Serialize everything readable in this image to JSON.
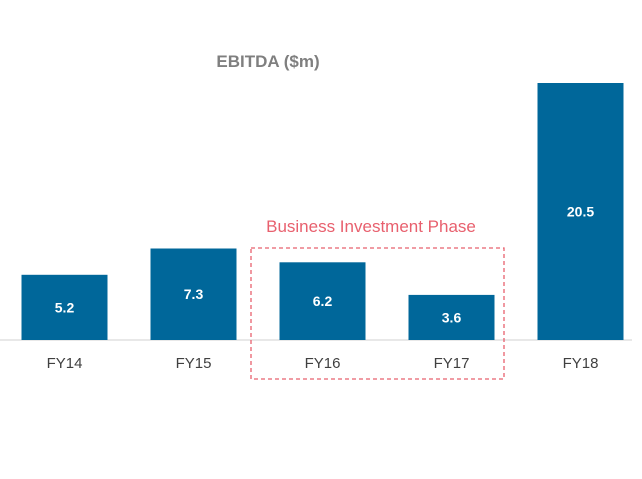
{
  "chart_data": {
    "type": "bar",
    "title": "EBITDA ($m)",
    "categories": [
      "FY14",
      "FY15",
      "FY16",
      "FY17",
      "FY18"
    ],
    "values": [
      5.2,
      7.3,
      6.2,
      3.6,
      20.5
    ],
    "value_labels": [
      "5.2",
      "7.3",
      "6.2",
      "3.6",
      "20.5"
    ],
    "xlabel": "",
    "ylabel": "",
    "ylim": [
      0,
      20.5
    ],
    "grid": false,
    "legend": "none",
    "annotation": {
      "text": "Business Investment Phase",
      "categories": [
        "FY16",
        "FY17"
      ]
    },
    "colors": {
      "bar": "#00679a",
      "bar_label": "#ffffff",
      "title": "#7f7f7f",
      "tick_label": "#404040",
      "axis": "#d0d0d0",
      "annotation": "#e8606e"
    }
  }
}
